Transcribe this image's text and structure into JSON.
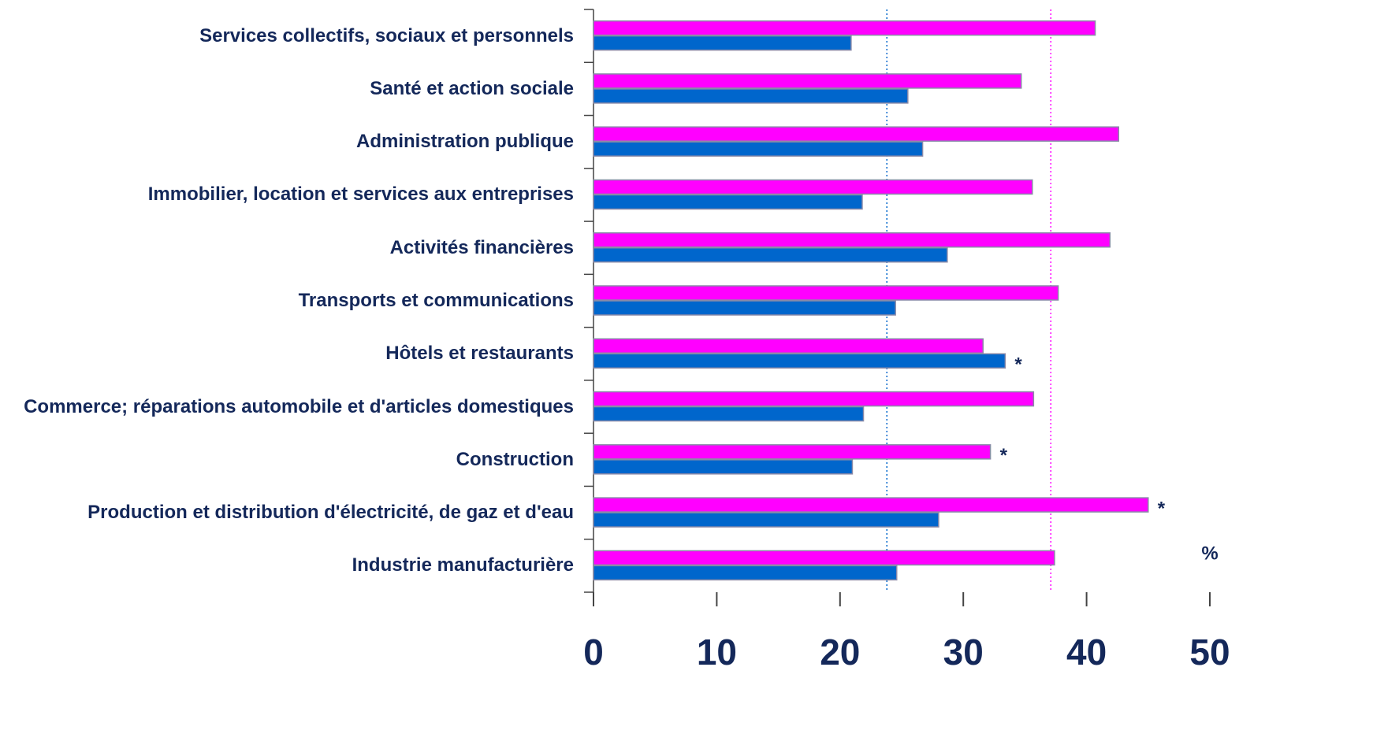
{
  "chart_data": {
    "type": "barh",
    "categories": [
      "Services collectifs, sociaux et personnels",
      "Santé et action sociale",
      "Administration publique",
      "Immobilier, location et services aux entreprises",
      "Activités financières",
      "Transports et communications",
      "Hôtels et restaurants",
      "Commerce; réparations automobile et d'articles domestiques",
      "Construction",
      "Production et distribution d'électricité, de gaz et d'eau",
      "Industrie manufacturière"
    ],
    "series": [
      {
        "color": "#ff00ff",
        "values": [
          40.7,
          34.7,
          42.6,
          35.6,
          41.9,
          37.7,
          31.6,
          35.7,
          32.2,
          45.0,
          37.4
        ]
      },
      {
        "color": "#0066cc",
        "values": [
          20.9,
          25.5,
          26.7,
          21.8,
          28.7,
          24.5,
          33.4,
          21.9,
          21.0,
          28.0,
          24.6
        ]
      }
    ],
    "xlim": [
      0,
      50
    ],
    "xticks": [
      0,
      10,
      20,
      30,
      40,
      50
    ],
    "reference_lines": [
      {
        "value": 23.8,
        "color": "#0066cc"
      },
      {
        "value": 37.1,
        "color": "#ff00ff"
      }
    ],
    "annotations": [
      {
        "text": "*",
        "category": 6,
        "series": 1
      },
      {
        "text": "*",
        "category": 8,
        "series": 0
      },
      {
        "text": "*",
        "category": 9,
        "series": 0
      }
    ],
    "unit_label": "%",
    "grid": false
  }
}
